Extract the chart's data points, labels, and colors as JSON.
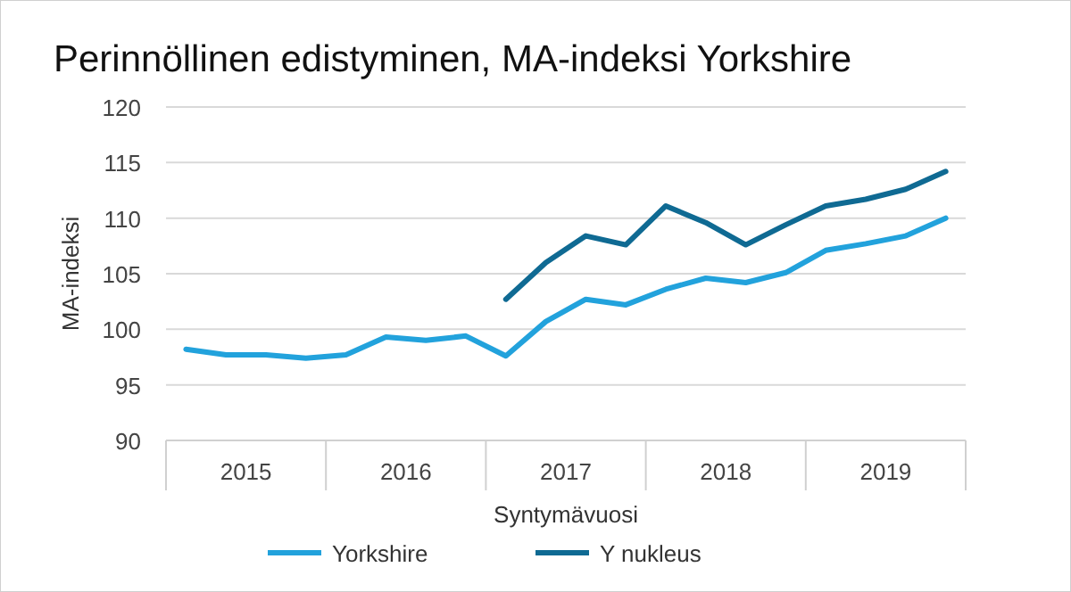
{
  "chart_data": {
    "type": "line",
    "title": "Perinnöllinen edistyminen, MA-indeksi  Yorkshire",
    "xlabel": "Syntymävuosi",
    "ylabel": "MA-indeksi",
    "x": [
      2015.125,
      2015.375,
      2015.625,
      2015.875,
      2016.125,
      2016.375,
      2016.625,
      2016.875,
      2017.125,
      2017.375,
      2017.625,
      2017.875,
      2018.125,
      2018.375,
      2018.625,
      2018.875,
      2019.125,
      2019.375,
      2019.625,
      2019.875
    ],
    "xlim": [
      2015,
      2020
    ],
    "xticks": [
      {
        "value": 2015.5,
        "label": "2015"
      },
      {
        "value": 2016.5,
        "label": "2016"
      },
      {
        "value": 2017.5,
        "label": "2017"
      },
      {
        "value": 2018.5,
        "label": "2018"
      },
      {
        "value": 2019.5,
        "label": "2019"
      }
    ],
    "series": [
      {
        "name": "Yorkshire",
        "color": "#22a2dc",
        "values": [
          98.2,
          97.7,
          97.7,
          97.4,
          97.7,
          99.3,
          99.0,
          99.4,
          97.6,
          100.7,
          102.7,
          102.2,
          103.6,
          104.6,
          104.2,
          105.1,
          107.1,
          107.7,
          108.4,
          110.0
        ]
      },
      {
        "name": "Y nukleus",
        "color": "#0f6a93",
        "values": [
          null,
          null,
          null,
          null,
          null,
          null,
          null,
          null,
          102.7,
          106.0,
          108.4,
          107.6,
          111.1,
          109.6,
          107.6,
          109.4,
          111.1,
          111.7,
          112.6,
          114.2
        ]
      }
    ],
    "ylim": [
      90,
      120
    ],
    "yticks": [
      90,
      95,
      100,
      105,
      110,
      115,
      120
    ],
    "grid": "y",
    "legend": "bottom",
    "marker": "none",
    "line_style": "solid"
  }
}
